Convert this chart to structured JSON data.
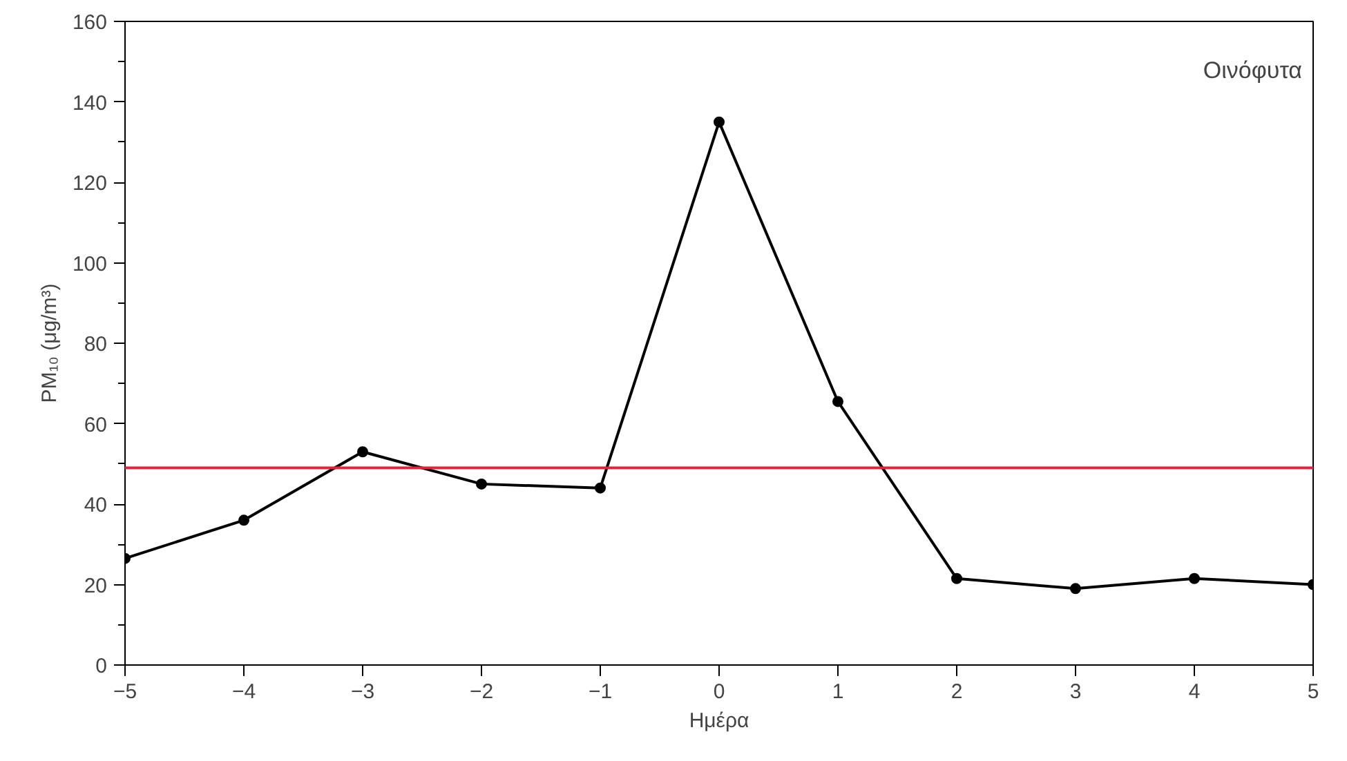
{
  "chart_data": {
    "type": "line",
    "xlabel": "Ημέρα",
    "ylabel": "PM₁₀ (μg/m³)",
    "x": [
      -5,
      -4,
      -3,
      -2,
      -1,
      0,
      1,
      2,
      3,
      4,
      5
    ],
    "series": [
      {
        "color": "#000000",
        "values": [
          26.5,
          36,
          53,
          45,
          44,
          135,
          65.5,
          21.5,
          19,
          21.5,
          20
        ]
      }
    ],
    "xlim": [
      -5,
      5
    ],
    "xticks": [
      -5,
      -4,
      -3,
      -2,
      -1,
      0,
      1,
      2,
      3,
      4,
      5
    ],
    "ylim": [
      0,
      160
    ],
    "yticks": [
      0,
      20,
      40,
      60,
      80,
      100,
      120,
      140,
      160
    ],
    "ref_lines": [
      {
        "axis": "y",
        "value": 49,
        "color": "#e8203a"
      }
    ],
    "annotations": [
      "Οινόφυτα"
    ],
    "marker": "circle",
    "line_style": "solid",
    "grid": false
  }
}
